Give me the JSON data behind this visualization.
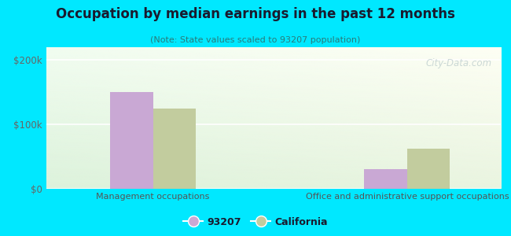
{
  "title": "Occupation by median earnings in the past 12 months",
  "subtitle": "(Note: State values scaled to 93207 population)",
  "categories": [
    "Management occupations",
    "Office and administrative support occupations"
  ],
  "series": {
    "93207": [
      150000,
      30000
    ],
    "California": [
      125000,
      62000
    ]
  },
  "bar_colors": {
    "93207": "#c9a8d4",
    "California": "#c2cc9e"
  },
  "ylim": [
    0,
    220000
  ],
  "yticks": [
    0,
    100000,
    200000
  ],
  "yticklabels": [
    "$0",
    "$100k",
    "$200k"
  ],
  "watermark": "City-Data.com",
  "background_color": "#00e8ff",
  "legend_labels": [
    "93207",
    "California"
  ],
  "bar_width": 0.32,
  "title_color": "#1a1a2e",
  "subtitle_color": "#2a7a7a",
  "tick_color": "#666666",
  "xlabel_color": "#555555"
}
